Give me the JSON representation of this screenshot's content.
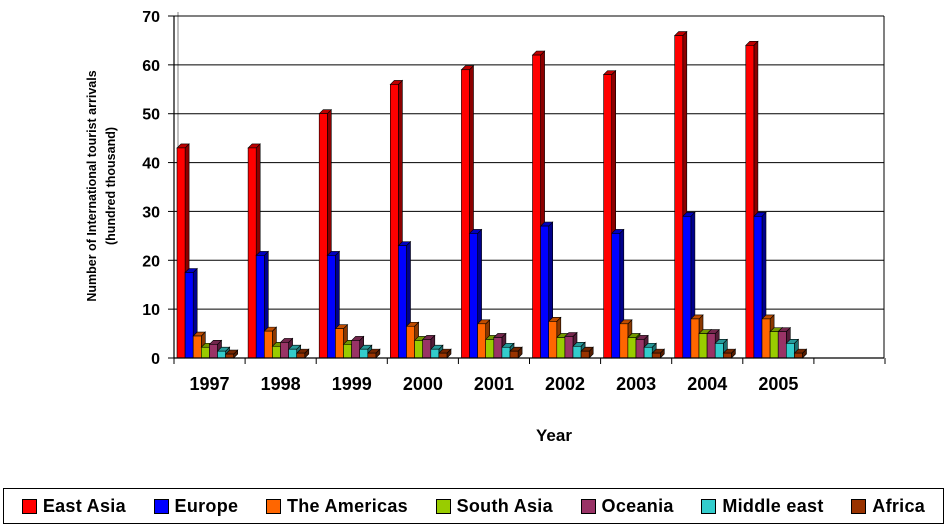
{
  "chart_data": {
    "type": "bar",
    "title": "",
    "xlabel": "Year",
    "ylabel_lines": [
      "Number of International  tourist arrivals",
      "(hundred thousand)"
    ],
    "ylim": [
      0,
      70
    ],
    "yticks": [
      0,
      10,
      20,
      30,
      40,
      50,
      60,
      70
    ],
    "grid": "horizontal",
    "legend_position": "bottom",
    "categories": [
      "1997",
      "1998",
      "1999",
      "2000",
      "2001",
      "2002",
      "2003",
      "2004",
      "2005"
    ],
    "series": [
      {
        "name": "East Asia",
        "color": "#ff0000",
        "values": [
          43,
          43,
          50,
          56,
          59,
          62,
          58,
          66,
          64
        ]
      },
      {
        "name": "Europe",
        "color": "#0000ff",
        "values": [
          17.5,
          21,
          21,
          23,
          25.5,
          27,
          25.5,
          29,
          29
        ]
      },
      {
        "name": "The Americas",
        "color": "#ff6600",
        "values": [
          4.5,
          5.5,
          6,
          6.5,
          7,
          7.5,
          7,
          8,
          8
        ]
      },
      {
        "name": "South Asia",
        "color": "#99cc00",
        "values": [
          2.2,
          2.4,
          2.8,
          3.6,
          3.8,
          4.2,
          4.2,
          5,
          5.4
        ]
      },
      {
        "name": "Oceania",
        "color": "#993366",
        "values": [
          2.8,
          3.2,
          3.6,
          3.8,
          4.2,
          4.4,
          3.8,
          5,
          5.4
        ]
      },
      {
        "name": "Middle east",
        "color": "#33cccc",
        "values": [
          1.4,
          1.8,
          1.8,
          1.8,
          2.2,
          2.4,
          2.2,
          3,
          3
        ]
      },
      {
        "name": "Africa",
        "color": "#993300",
        "values": [
          0.8,
          1,
          1,
          1,
          1.4,
          1.4,
          1,
          1,
          1
        ]
      }
    ]
  }
}
